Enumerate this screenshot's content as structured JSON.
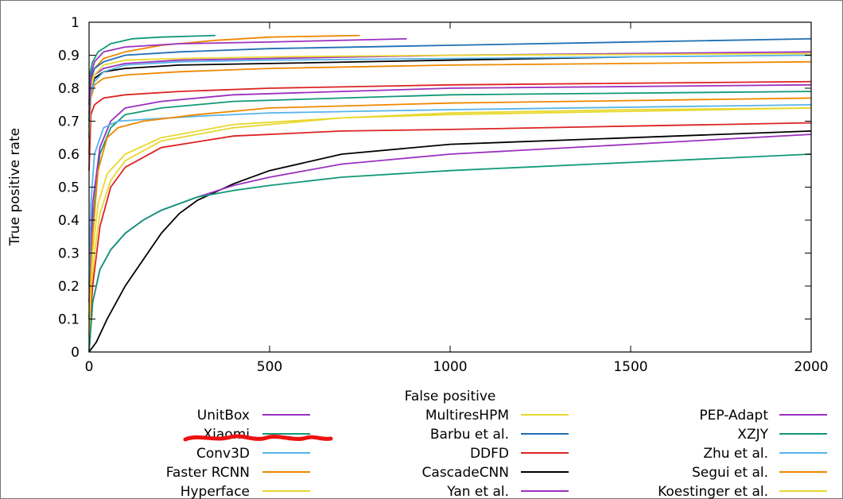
{
  "chart_data": {
    "type": "line",
    "title": "",
    "xlabel": "False positive",
    "ylabel": "True positive rate",
    "xlim": [
      0,
      2000
    ],
    "ylim": [
      0,
      1
    ],
    "x_ticks": [
      0,
      500,
      1000,
      1500,
      2000
    ],
    "y_ticks": [
      0,
      0.1,
      0.2,
      0.3,
      0.4,
      0.5,
      0.6,
      0.7,
      0.8,
      0.9,
      1
    ],
    "x_tick_labels": [
      "0",
      "500",
      "1000",
      "1500",
      "2000"
    ],
    "y_tick_labels": [
      "0",
      "0.1",
      "0.2",
      "0.3",
      "0.4",
      "0.5",
      "0.6",
      "0.7",
      "0.8",
      "0.9",
      "1"
    ],
    "grid": false,
    "legend_position": "bottom",
    "annotations": [
      "red freehand underline beneath legend entry 'Xiaomi'"
    ],
    "series": [
      {
        "name": "UnitBox",
        "color": "#9b30c0",
        "x": [
          0,
          5,
          15,
          40,
          100,
          250,
          500,
          1000,
          2000
        ],
        "y": [
          0.68,
          0.8,
          0.84,
          0.86,
          0.875,
          0.885,
          0.89,
          0.9,
          0.91
        ]
      },
      {
        "name": "Xiaomi",
        "color": "#119977",
        "x": [
          0,
          3,
          10,
          25,
          60,
          120,
          200,
          350
        ],
        "y": [
          0.75,
          0.85,
          0.88,
          0.91,
          0.935,
          0.95,
          0.955,
          0.96
        ]
      },
      {
        "name": "Conv3D",
        "color": "#56b4e9",
        "x": [
          0,
          5,
          15,
          40,
          100,
          250,
          500,
          1000,
          2000
        ],
        "y": [
          0.65,
          0.78,
          0.82,
          0.85,
          0.87,
          0.88,
          0.885,
          0.89,
          0.9
        ]
      },
      {
        "name": "Faster RCNN",
        "color": "#ee8800",
        "x": [
          0,
          5,
          15,
          40,
          100,
          200,
          350,
          500,
          750
        ],
        "y": [
          0.7,
          0.82,
          0.86,
          0.89,
          0.91,
          0.93,
          0.945,
          0.955,
          0.96
        ]
      },
      {
        "name": "Hyperface",
        "color": "#e8d830",
        "x": [
          0,
          5,
          15,
          40,
          100,
          250,
          500,
          1000,
          2000
        ],
        "y": [
          0.66,
          0.8,
          0.84,
          0.87,
          0.885,
          0.89,
          0.895,
          0.9,
          0.905
        ]
      },
      {
        "name": "MultiresHPM",
        "color": "#e8d830",
        "x": [
          0,
          5,
          15,
          30,
          60,
          100,
          200,
          400,
          700,
          1000,
          1500,
          2000
        ],
        "y": [
          0.0,
          0.15,
          0.3,
          0.42,
          0.52,
          0.58,
          0.64,
          0.68,
          0.71,
          0.725,
          0.735,
          0.74
        ]
      },
      {
        "name": "Barbu et al.",
        "color": "#1f6fb4",
        "x": [
          0,
          5,
          15,
          40,
          100,
          250,
          500,
          1000,
          2000
        ],
        "y": [
          0.7,
          0.83,
          0.86,
          0.88,
          0.9,
          0.91,
          0.92,
          0.93,
          0.95
        ]
      },
      {
        "name": "DDFD",
        "color": "#dd2222",
        "x": [
          0,
          10,
          30,
          60,
          100,
          200,
          400,
          700,
          1000,
          1500,
          2000
        ],
        "y": [
          0.05,
          0.2,
          0.38,
          0.5,
          0.56,
          0.62,
          0.655,
          0.67,
          0.675,
          0.685,
          0.695
        ]
      },
      {
        "name": "CascadeCNN",
        "color": "#000000",
        "x": [
          0,
          20,
          50,
          100,
          150,
          200,
          250,
          300,
          400,
          500,
          700,
          1000,
          1500,
          2000
        ],
        "y": [
          0.0,
          0.03,
          0.1,
          0.2,
          0.28,
          0.36,
          0.42,
          0.46,
          0.51,
          0.55,
          0.6,
          0.63,
          0.65,
          0.67
        ]
      },
      {
        "name": "Yan et al.",
        "color": "#9b30c0",
        "x": [
          0,
          5,
          15,
          40,
          100,
          250,
          500,
          880
        ],
        "y": [
          0.72,
          0.84,
          0.88,
          0.91,
          0.925,
          0.935,
          0.94,
          0.95
        ]
      },
      {
        "name": "PEP-Adapt",
        "color": "#9b30c0",
        "x": [
          0,
          10,
          30,
          60,
          100,
          150,
          200,
          300,
          400,
          500,
          700,
          1000,
          1500,
          2000
        ],
        "y": [
          0.0,
          0.15,
          0.25,
          0.31,
          0.36,
          0.4,
          0.43,
          0.47,
          0.505,
          0.53,
          0.57,
          0.6,
          0.63,
          0.66
        ]
      },
      {
        "name": "XZJY",
        "color": "#119977",
        "x": [
          0,
          10,
          30,
          60,
          100,
          150,
          200,
          300,
          400,
          500,
          700,
          1000,
          1500,
          2000
        ],
        "y": [
          0.0,
          0.15,
          0.25,
          0.31,
          0.36,
          0.4,
          0.43,
          0.47,
          0.49,
          0.505,
          0.53,
          0.55,
          0.575,
          0.6
        ]
      },
      {
        "name": "Zhu et al.",
        "color": "#56b4e9",
        "x": [
          0,
          5,
          15,
          40,
          80,
          150,
          300,
          500,
          1000,
          2000
        ],
        "y": [
          0.2,
          0.45,
          0.6,
          0.68,
          0.7,
          0.705,
          0.715,
          0.725,
          0.735,
          0.75
        ]
      },
      {
        "name": "Segui et al.",
        "color": "#ee8800",
        "x": [
          0,
          10,
          25,
          50,
          80,
          150,
          300,
          500,
          1000,
          2000
        ],
        "y": [
          0.1,
          0.35,
          0.55,
          0.65,
          0.68,
          0.7,
          0.72,
          0.74,
          0.755,
          0.77
        ]
      },
      {
        "name": "Koestinger et al.",
        "color": "#e8d830",
        "x": [
          0,
          10,
          25,
          50,
          100,
          200,
          400,
          700,
          1000,
          1500,
          2000
        ],
        "y": [
          0.05,
          0.3,
          0.45,
          0.54,
          0.6,
          0.65,
          0.69,
          0.71,
          0.72,
          0.73,
          0.74
        ]
      }
    ],
    "extra_unlabeled_series": [
      {
        "color": "#000000",
        "x": [
          0,
          5,
          15,
          40,
          100,
          250,
          500,
          1000,
          1500
        ],
        "y": [
          0.65,
          0.8,
          0.83,
          0.85,
          0.86,
          0.87,
          0.875,
          0.885,
          0.895
        ]
      },
      {
        "color": "#ee8800",
        "x": [
          0,
          5,
          15,
          40,
          100,
          250,
          500,
          1000,
          2000
        ],
        "y": [
          0.6,
          0.77,
          0.81,
          0.83,
          0.84,
          0.85,
          0.86,
          0.87,
          0.88
        ]
      },
      {
        "color": "#dd2222",
        "x": [
          0,
          5,
          15,
          40,
          100,
          250,
          500,
          1000,
          2000
        ],
        "y": [
          0.55,
          0.72,
          0.75,
          0.77,
          0.78,
          0.79,
          0.8,
          0.81,
          0.82
        ]
      },
      {
        "color": "#119977",
        "x": [
          0,
          10,
          30,
          60,
          100,
          200,
          400,
          700,
          1000,
          2000
        ],
        "y": [
          0.1,
          0.4,
          0.6,
          0.68,
          0.72,
          0.74,
          0.76,
          0.77,
          0.78,
          0.79
        ]
      },
      {
        "color": "#9b30c0",
        "x": [
          0,
          10,
          30,
          60,
          100,
          200,
          400,
          700,
          1000,
          2000
        ],
        "y": [
          0.15,
          0.45,
          0.62,
          0.7,
          0.74,
          0.76,
          0.78,
          0.79,
          0.8,
          0.81
        ]
      }
    ]
  }
}
